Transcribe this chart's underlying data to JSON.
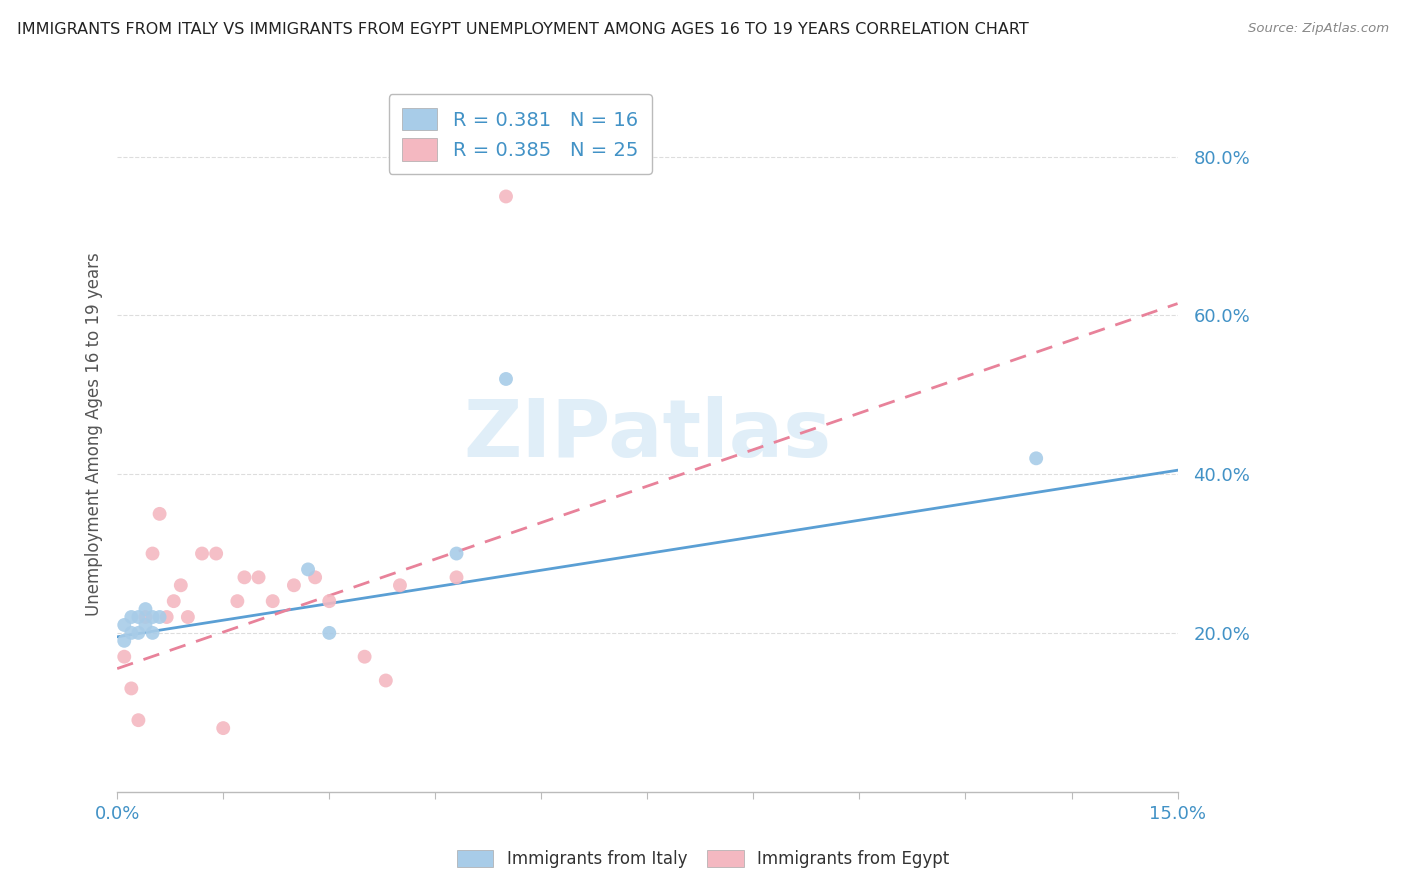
{
  "title": "IMMIGRANTS FROM ITALY VS IMMIGRANTS FROM EGYPT UNEMPLOYMENT AMONG AGES 16 TO 19 YEARS CORRELATION CHART",
  "source": "Source: ZipAtlas.com",
  "ylabel": "Unemployment Among Ages 16 to 19 years",
  "xlim": [
    0.0,
    0.15
  ],
  "ylim": [
    0.0,
    0.9
  ],
  "xticks": [
    0.0,
    0.015,
    0.03,
    0.045,
    0.06,
    0.075,
    0.09,
    0.105,
    0.12,
    0.135,
    0.15
  ],
  "ytick_vals": [
    0.2,
    0.4,
    0.6,
    0.8
  ],
  "ytick_labels": [
    "20.0%",
    "40.0%",
    "60.0%",
    "80.0%"
  ],
  "xtick_labels": [
    "0.0%",
    "",
    "",
    "",
    "",
    "",
    "",
    "",
    "",
    "",
    "15.0%"
  ],
  "italy_R": 0.381,
  "italy_N": 16,
  "egypt_R": 0.385,
  "egypt_N": 25,
  "italy_color": "#a8cce8",
  "egypt_color": "#f4b8c1",
  "italy_line_color": "#5a9fd4",
  "egypt_line_color": "#e8829a",
  "watermark_text": "ZIPatlas",
  "italy_line_x": [
    0.0,
    0.15
  ],
  "italy_line_y": [
    0.195,
    0.405
  ],
  "egypt_line_x": [
    0.0,
    0.15
  ],
  "egypt_line_y": [
    0.155,
    0.615
  ],
  "italy_scatter_x": [
    0.001,
    0.001,
    0.002,
    0.002,
    0.003,
    0.003,
    0.004,
    0.004,
    0.005,
    0.005,
    0.006,
    0.027,
    0.03,
    0.048,
    0.055,
    0.13
  ],
  "italy_scatter_y": [
    0.21,
    0.19,
    0.22,
    0.2,
    0.22,
    0.2,
    0.23,
    0.21,
    0.22,
    0.2,
    0.22,
    0.28,
    0.2,
    0.3,
    0.52,
    0.42
  ],
  "egypt_scatter_x": [
    0.001,
    0.002,
    0.003,
    0.004,
    0.005,
    0.006,
    0.007,
    0.008,
    0.009,
    0.01,
    0.012,
    0.014,
    0.015,
    0.017,
    0.018,
    0.02,
    0.022,
    0.025,
    0.028,
    0.03,
    0.035,
    0.038,
    0.04,
    0.048,
    0.055
  ],
  "egypt_scatter_y": [
    0.17,
    0.13,
    0.09,
    0.22,
    0.3,
    0.35,
    0.22,
    0.24,
    0.26,
    0.22,
    0.3,
    0.3,
    0.08,
    0.24,
    0.27,
    0.27,
    0.24,
    0.26,
    0.27,
    0.24,
    0.17,
    0.14,
    0.26,
    0.27,
    0.75
  ]
}
